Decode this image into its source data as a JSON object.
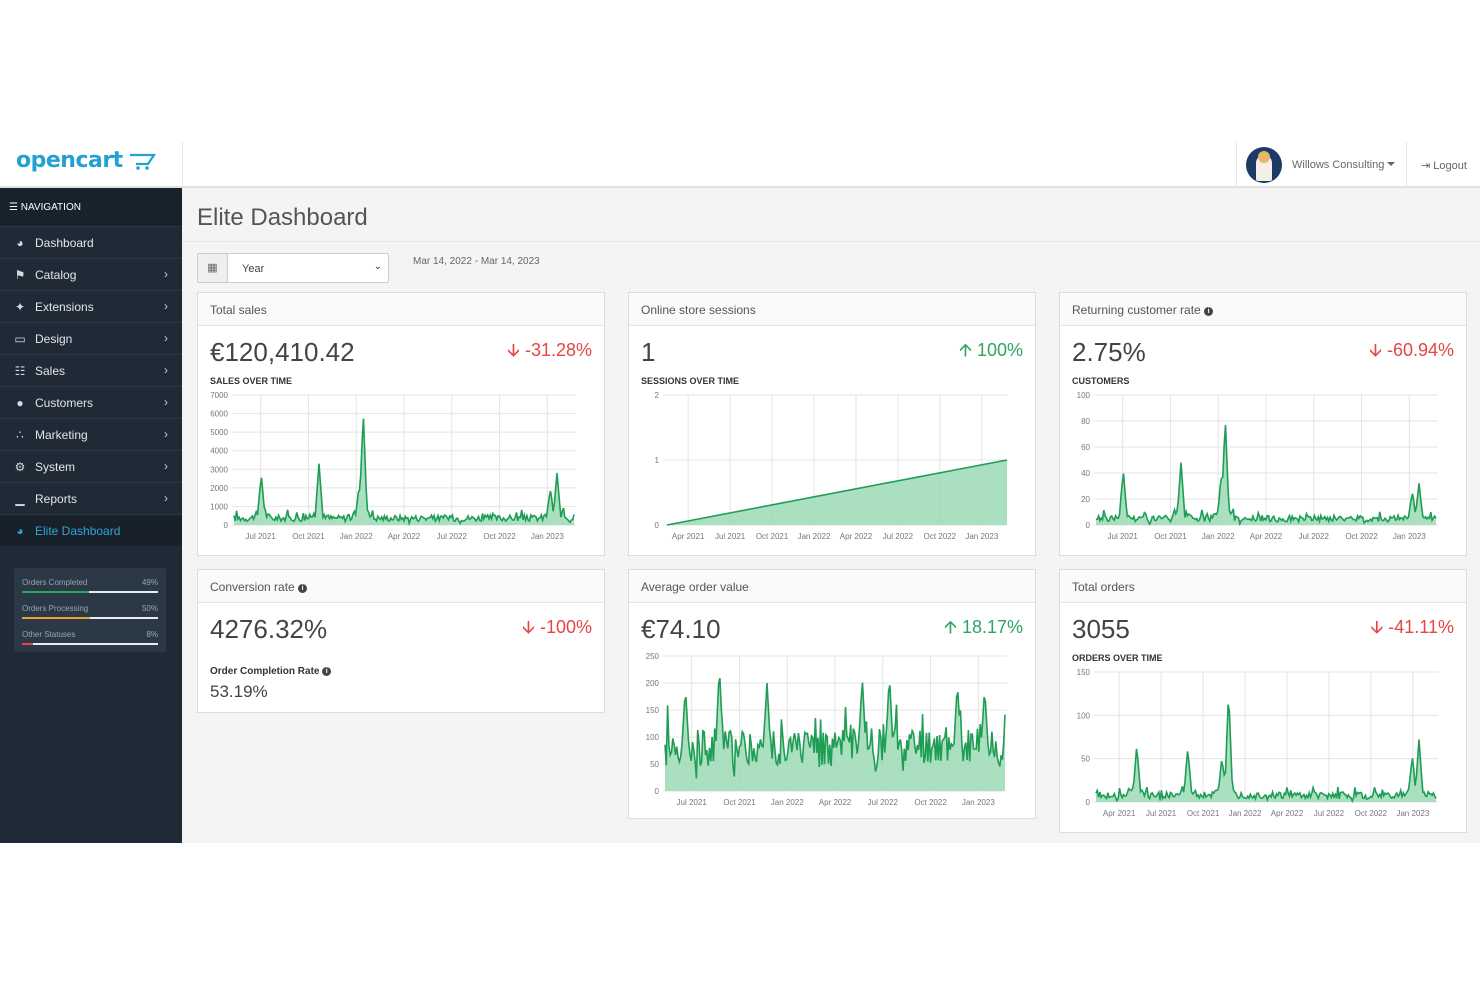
{
  "header": {
    "logo_text": "opencart",
    "user_name": "Willows Consulting",
    "logout_label": "Logout"
  },
  "sidebar": {
    "nav_heading": "NAVIGATION",
    "items": [
      {
        "label": "Dashboard",
        "icon": "dashboard-icon",
        "has_chevron": false
      },
      {
        "label": "Catalog",
        "icon": "tags-icon",
        "has_chevron": true
      },
      {
        "label": "Extensions",
        "icon": "puzzle-icon",
        "has_chevron": true
      },
      {
        "label": "Design",
        "icon": "monitor-icon",
        "has_chevron": true
      },
      {
        "label": "Sales",
        "icon": "cart-icon",
        "has_chevron": true
      },
      {
        "label": "Customers",
        "icon": "user-icon",
        "has_chevron": true
      },
      {
        "label": "Marketing",
        "icon": "share-icon",
        "has_chevron": true
      },
      {
        "label": "System",
        "icon": "gear-icon",
        "has_chevron": true
      },
      {
        "label": "Reports",
        "icon": "bar-chart-icon",
        "has_chevron": true
      },
      {
        "label": "Elite Dashboard",
        "icon": "dashboard-icon",
        "has_chevron": false,
        "active": true
      }
    ],
    "stats": [
      {
        "label": "Orders Completed",
        "value": "49%",
        "fraction": 0.49,
        "color": "#2ea463"
      },
      {
        "label": "Orders Processing",
        "value": "50%",
        "fraction": 0.5,
        "color": "#f0a03a"
      },
      {
        "label": "Other Statuses",
        "value": "8%",
        "fraction": 0.08,
        "color": "#e44545"
      }
    ]
  },
  "main": {
    "page_title": "Elite Dashboard",
    "range_select": "Year",
    "date_range": "Mar 14, 2022 - Mar 14, 2023"
  },
  "cards": {
    "total_sales": {
      "title": "Total sales",
      "value": "€120,410.42",
      "delta": "-31.28%",
      "direction": "down",
      "sub_label": "SALES OVER TIME"
    },
    "sessions": {
      "title": "Online store sessions",
      "value": "1",
      "delta": "100%",
      "direction": "up",
      "sub_label": "SESSIONS OVER TIME"
    },
    "returning": {
      "title": "Returning customer rate",
      "value": "2.75%",
      "delta": "-60.94%",
      "direction": "down",
      "sub_label": "CUSTOMERS"
    },
    "conversion": {
      "title": "Conversion rate",
      "value": "4276.32%",
      "delta": "-100%",
      "direction": "down",
      "ccr_label": "Order Completion Rate",
      "ccr_value": "53.19%"
    },
    "avg_order": {
      "title": "Average order value",
      "value": "€74.10",
      "delta": "18.17%",
      "direction": "up"
    },
    "total_orders": {
      "title": "Total orders",
      "value": "3055",
      "delta": "-41.11%",
      "direction": "down",
      "sub_label": "ORDERS OVER TIME"
    }
  },
  "chart_data": [
    {
      "id": "sales",
      "type": "area",
      "ylim": [
        0,
        7000
      ],
      "y_ticks": [
        "0",
        "1000",
        "2000",
        "3000",
        "4000",
        "5000",
        "6000",
        "7000"
      ],
      "x_ticks": [
        "Jul 2021",
        "Oct 2021",
        "Jan 2022",
        "Apr 2022",
        "Jul 2022",
        "Oct 2022",
        "Jan 2023"
      ],
      "baseline": 300,
      "noise": 350,
      "spikes": [
        [
          0.08,
          2700
        ],
        [
          0.25,
          3300
        ],
        [
          0.37,
          2000
        ],
        [
          0.38,
          6100
        ],
        [
          0.93,
          1800
        ],
        [
          0.95,
          2800
        ]
      ]
    },
    {
      "id": "sessions",
      "type": "area",
      "ylim": [
        0,
        2
      ],
      "y_ticks": [
        "0",
        "1",
        "2"
      ],
      "x_ticks": [
        "Apr 2021",
        "Jul 2021",
        "Oct 2021",
        "Jan 2022",
        "Apr 2022",
        "Jul 2022",
        "Oct 2022",
        "Jan 2023"
      ],
      "linear": [
        0,
        1
      ]
    },
    {
      "id": "customers",
      "type": "area",
      "ylim": [
        0,
        100
      ],
      "y_ticks": [
        "0",
        "20",
        "40",
        "60",
        "80",
        "100"
      ],
      "x_ticks": [
        "Jul 2021",
        "Oct 2021",
        "Jan 2022",
        "Apr 2022",
        "Jul 2022",
        "Oct 2022",
        "Jan 2023"
      ],
      "baseline": 4,
      "noise": 5,
      "spikes": [
        [
          0.08,
          42
        ],
        [
          0.25,
          48
        ],
        [
          0.37,
          38
        ],
        [
          0.38,
          82
        ],
        [
          0.93,
          24
        ],
        [
          0.95,
          32
        ]
      ]
    },
    {
      "id": "avg_order",
      "type": "area",
      "ylim": [
        0,
        250
      ],
      "y_ticks": [
        "0",
        "50",
        "100",
        "150",
        "200",
        "250"
      ],
      "x_ticks": [
        "Jul 2021",
        "Oct 2021",
        "Jan 2022",
        "Apr 2022",
        "Jul 2022",
        "Oct 2022",
        "Jan 2023"
      ],
      "baseline": 65,
      "noise": 70,
      "spikes": [
        [
          0.06,
          190
        ],
        [
          0.16,
          230
        ],
        [
          0.3,
          200
        ],
        [
          0.58,
          210
        ],
        [
          0.66,
          215
        ],
        [
          0.86,
          200
        ],
        [
          0.94,
          190
        ]
      ]
    },
    {
      "id": "orders",
      "type": "area",
      "ylim": [
        0,
        150
      ],
      "y_ticks": [
        "0",
        "50",
        "100",
        "150"
      ],
      "x_ticks": [
        "Apr 2021",
        "Jul 2021",
        "Oct 2021",
        "Jan 2022",
        "Apr 2022",
        "Jul 2022",
        "Oct 2022",
        "Jan 2023"
      ],
      "baseline": 6,
      "noise": 8,
      "spikes": [
        [
          0.12,
          65
        ],
        [
          0.27,
          62
        ],
        [
          0.37,
          45
        ],
        [
          0.39,
          128
        ],
        [
          0.93,
          50
        ],
        [
          0.95,
          72
        ]
      ]
    }
  ]
}
